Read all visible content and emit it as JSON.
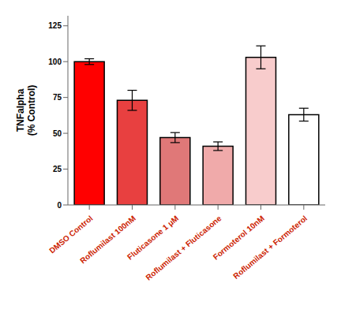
{
  "chart_data": {
    "type": "bar",
    "ylabel": "TNFalpha\n(% Control)",
    "categories": [
      "DMSO Control",
      "Roflumilast 100nM",
      "Fluticasone 1 μM",
      "Roflumilast + Fluticasone",
      "Formoterol 10nM",
      "Roflumilast + Formoterol"
    ],
    "values": [
      100,
      73,
      47,
      41,
      103,
      63
    ],
    "errors": [
      2,
      7,
      3.5,
      3,
      8,
      4.5
    ],
    "colors": [
      "#FF0000",
      "#E84040",
      "#E07878",
      "#F0AAAA",
      "#F8CCCC",
      "#FFFFFF"
    ],
    "ylim": [
      0,
      132
    ],
    "yticks": [
      0,
      25,
      50,
      75,
      100,
      125
    ],
    "grid": false
  }
}
